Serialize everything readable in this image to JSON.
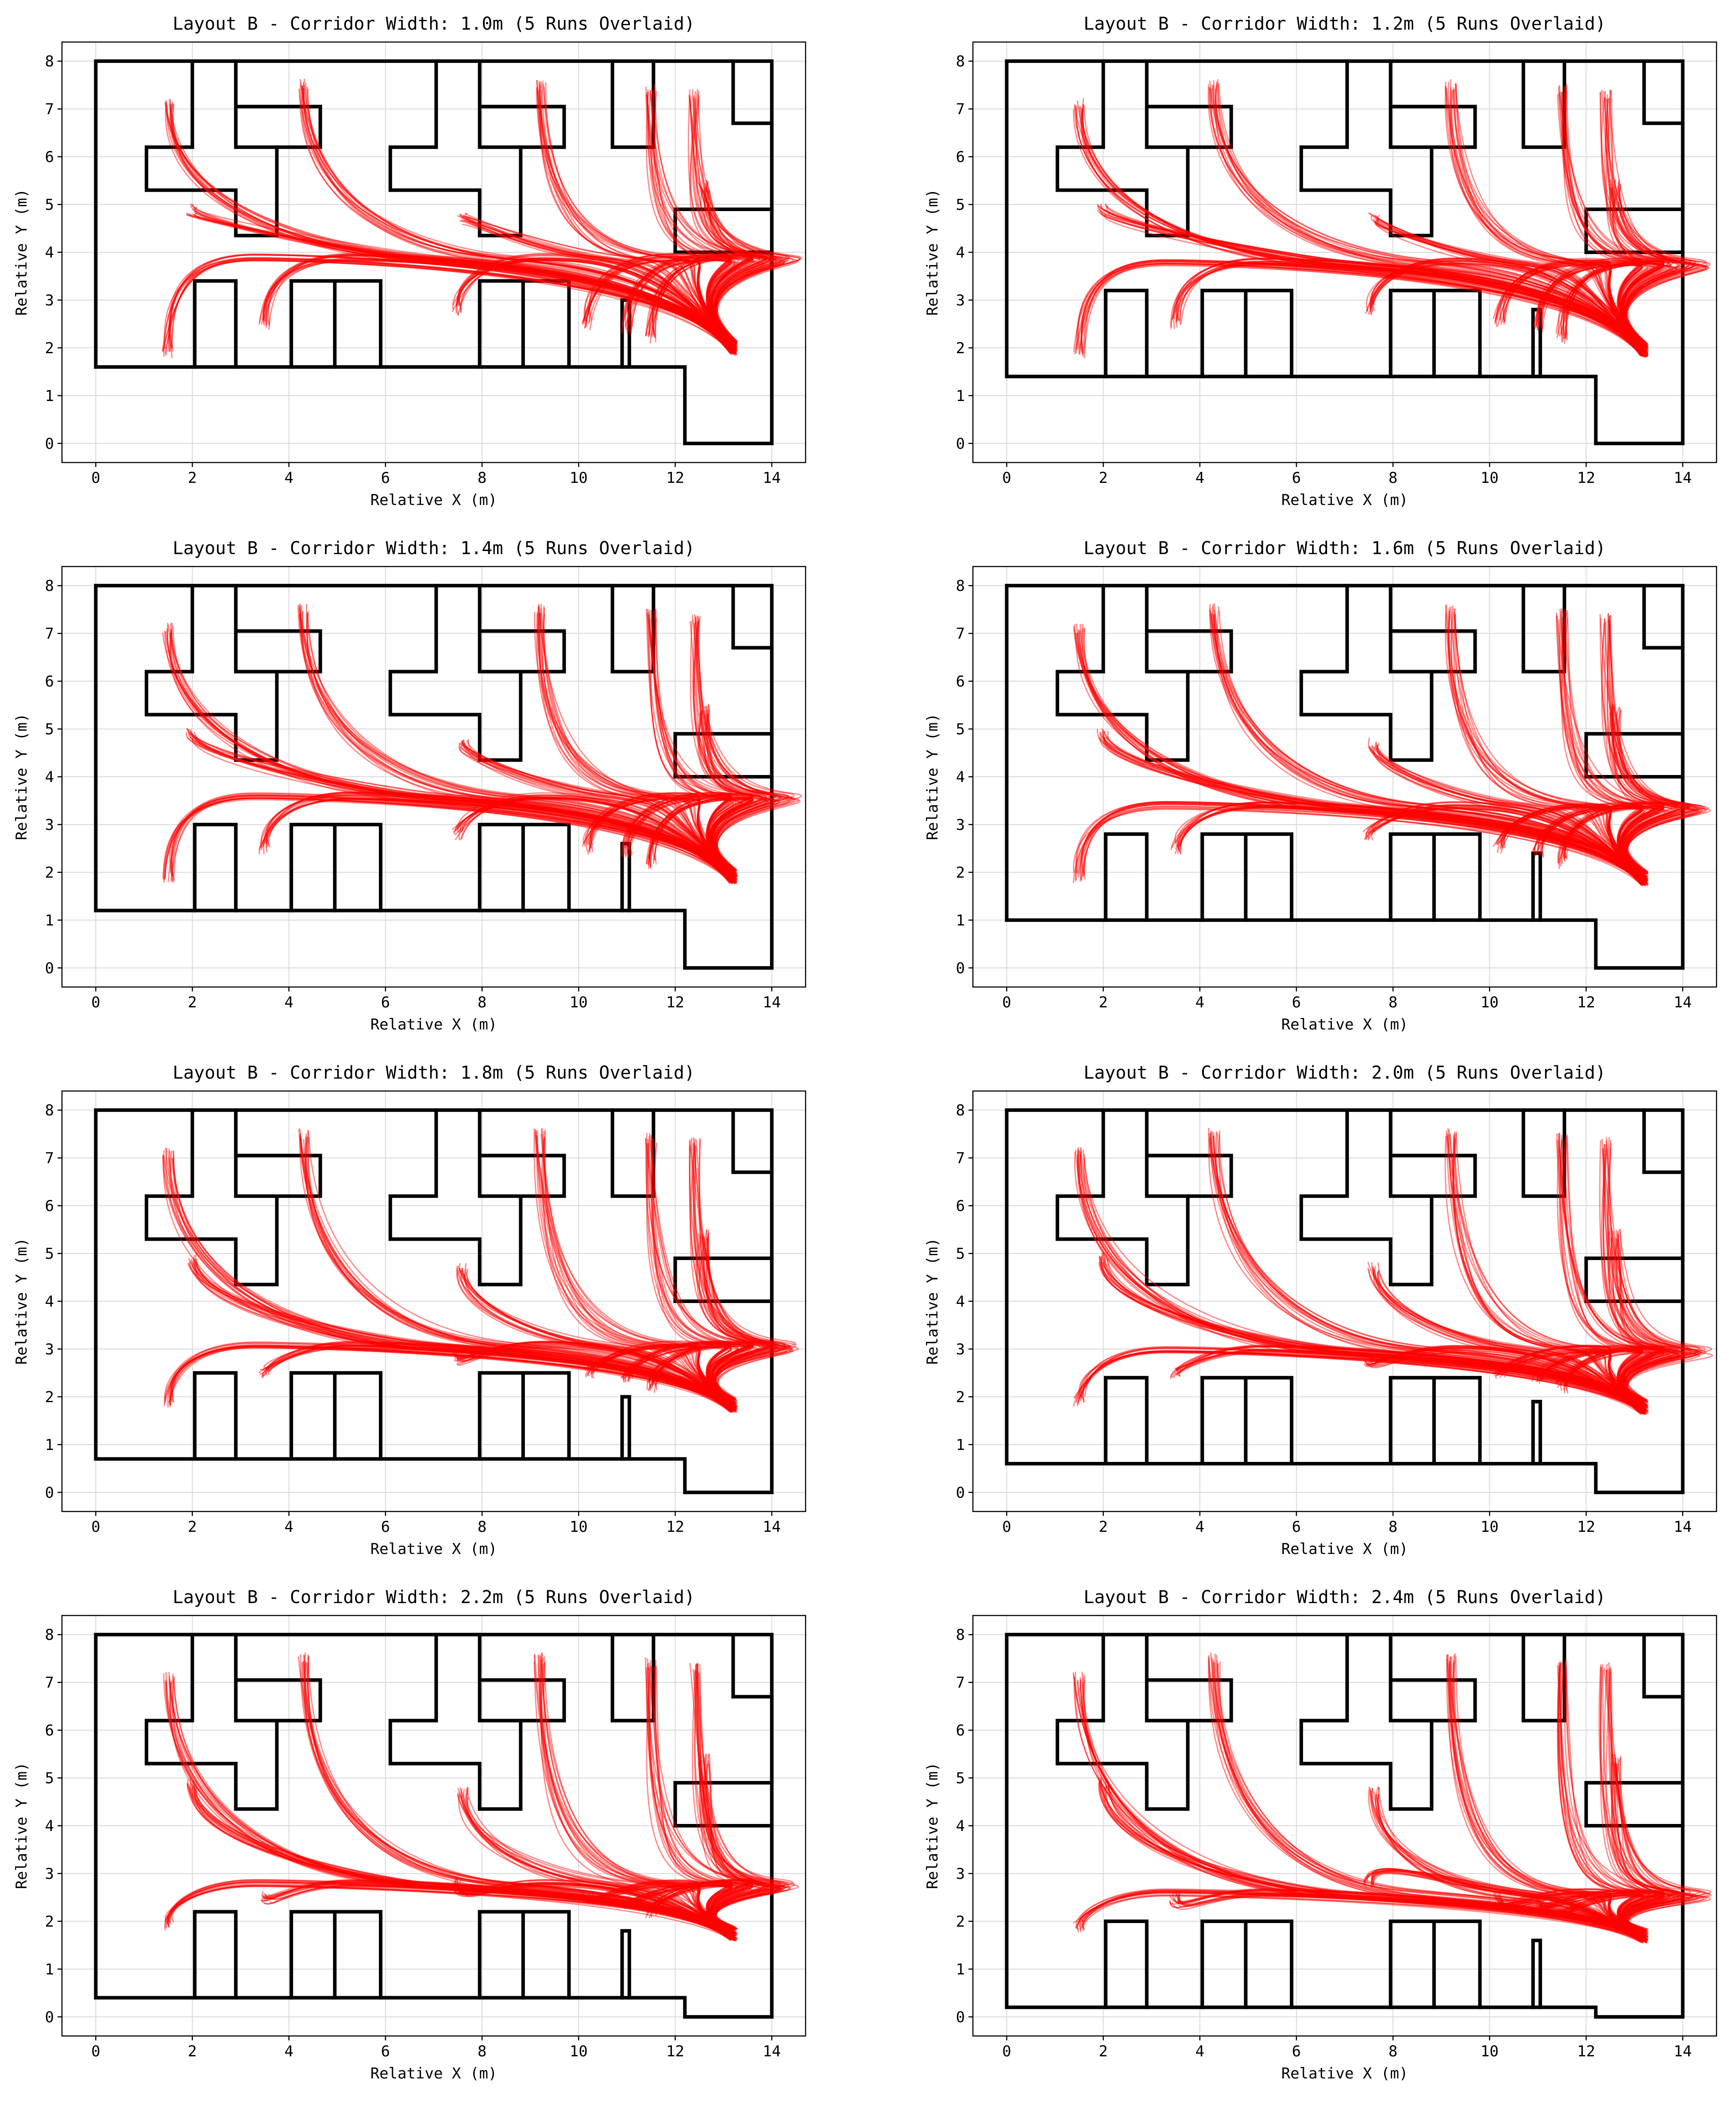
{
  "figure": {
    "grid": true,
    "line_color": "#ff0000",
    "wall_color": "#000000"
  },
  "chart_data": [
    {
      "type": "line",
      "title": "Layout B - Corridor Width: 1.0m (5 Runs Overlaid)",
      "xlabel": "Relative X (m)",
      "ylabel": "Relative Y (m)",
      "xlim": [
        -0.7,
        14.7
      ],
      "ylim": [
        -0.4,
        8.4
      ],
      "xticks": [
        "0",
        "2",
        "4",
        "6",
        "8",
        "10",
        "12",
        "14"
      ],
      "yticks": [
        "0",
        "1",
        "2",
        "3",
        "4",
        "5",
        "6",
        "7",
        "8"
      ],
      "corridor_width": 1.0,
      "corridor_y": 3.9,
      "lower_wall_y": 1.6,
      "lower_box_top": 3.4,
      "pillar_top": 3.0,
      "runs_overlaid": 5
    },
    {
      "type": "line",
      "title": "Layout B - Corridor Width: 1.2m (5 Runs Overlaid)",
      "xlabel": "Relative X (m)",
      "ylabel": "Relative Y (m)",
      "xlim": [
        -0.7,
        14.7
      ],
      "ylim": [
        -0.4,
        8.4
      ],
      "xticks": [
        "0",
        "2",
        "4",
        "6",
        "8",
        "10",
        "12",
        "14"
      ],
      "yticks": [
        "0",
        "1",
        "2",
        "3",
        "4",
        "5",
        "6",
        "7",
        "8"
      ],
      "corridor_width": 1.2,
      "corridor_y": 3.8,
      "lower_wall_y": 1.4,
      "lower_box_top": 3.2,
      "pillar_top": 2.8,
      "runs_overlaid": 5
    },
    {
      "type": "line",
      "title": "Layout B - Corridor Width: 1.4m (5 Runs Overlaid)",
      "xlabel": "Relative X (m)",
      "ylabel": "Relative Y (m)",
      "xlim": [
        -0.7,
        14.7
      ],
      "ylim": [
        -0.4,
        8.4
      ],
      "xticks": [
        "0",
        "2",
        "4",
        "6",
        "8",
        "10",
        "12",
        "14"
      ],
      "yticks": [
        "0",
        "1",
        "2",
        "3",
        "4",
        "5",
        "6",
        "7",
        "8"
      ],
      "corridor_width": 1.4,
      "corridor_y": 3.6,
      "lower_wall_y": 1.2,
      "lower_box_top": 3.0,
      "pillar_top": 2.6,
      "runs_overlaid": 5
    },
    {
      "type": "line",
      "title": "Layout B - Corridor Width: 1.6m (5 Runs Overlaid)",
      "xlabel": "Relative X (m)",
      "ylabel": "Relative Y (m)",
      "xlim": [
        -0.7,
        14.7
      ],
      "ylim": [
        -0.4,
        8.4
      ],
      "xticks": [
        "0",
        "2",
        "4",
        "6",
        "8",
        "10",
        "12",
        "14"
      ],
      "yticks": [
        "0",
        "1",
        "2",
        "3",
        "4",
        "5",
        "6",
        "7",
        "8"
      ],
      "corridor_width": 1.6,
      "corridor_y": 3.4,
      "lower_wall_y": 1.0,
      "lower_box_top": 2.8,
      "pillar_top": 2.4,
      "runs_overlaid": 5
    },
    {
      "type": "line",
      "title": "Layout B - Corridor Width: 1.8m (5 Runs Overlaid)",
      "xlabel": "Relative X (m)",
      "ylabel": "Relative Y (m)",
      "xlim": [
        -0.7,
        14.7
      ],
      "ylim": [
        -0.4,
        8.4
      ],
      "xticks": [
        "0",
        "2",
        "4",
        "6",
        "8",
        "10",
        "12",
        "14"
      ],
      "yticks": [
        "0",
        "1",
        "2",
        "3",
        "4",
        "5",
        "6",
        "7",
        "8"
      ],
      "corridor_width": 1.8,
      "corridor_y": 3.1,
      "lower_wall_y": 0.7,
      "lower_box_top": 2.5,
      "pillar_top": 2.0,
      "runs_overlaid": 5
    },
    {
      "type": "line",
      "title": "Layout B - Corridor Width: 2.0m (5 Runs Overlaid)",
      "xlabel": "Relative X (m)",
      "ylabel": "Relative Y (m)",
      "xlim": [
        -0.7,
        14.7
      ],
      "ylim": [
        -0.4,
        8.4
      ],
      "xticks": [
        "0",
        "2",
        "4",
        "6",
        "8",
        "10",
        "12",
        "14"
      ],
      "yticks": [
        "0",
        "1",
        "2",
        "3",
        "4",
        "5",
        "6",
        "7",
        "8"
      ],
      "corridor_width": 2.0,
      "corridor_y": 3.0,
      "lower_wall_y": 0.6,
      "lower_box_top": 2.4,
      "pillar_top": 1.9,
      "runs_overlaid": 5
    },
    {
      "type": "line",
      "title": "Layout B - Corridor Width: 2.2m (5 Runs Overlaid)",
      "xlabel": "Relative X (m)",
      "ylabel": "Relative Y (m)",
      "xlim": [
        -0.7,
        14.7
      ],
      "ylim": [
        -0.4,
        8.4
      ],
      "xticks": [
        "0",
        "2",
        "4",
        "6",
        "8",
        "10",
        "12",
        "14"
      ],
      "yticks": [
        "0",
        "1",
        "2",
        "3",
        "4",
        "5",
        "6",
        "7",
        "8"
      ],
      "corridor_width": 2.2,
      "corridor_y": 2.8,
      "lower_wall_y": 0.4,
      "lower_box_top": 2.2,
      "pillar_top": 1.8,
      "runs_overlaid": 5
    },
    {
      "type": "line",
      "title": "Layout B - Corridor Width: 2.4m (5 Runs Overlaid)",
      "xlabel": "Relative X (m)",
      "ylabel": "Relative Y (m)",
      "xlim": [
        -0.7,
        14.7
      ],
      "ylim": [
        -0.4,
        8.4
      ],
      "xticks": [
        "0",
        "2",
        "4",
        "6",
        "8",
        "10",
        "12",
        "14"
      ],
      "yticks": [
        "0",
        "1",
        "2",
        "3",
        "4",
        "5",
        "6",
        "7",
        "8"
      ],
      "corridor_width": 2.4,
      "corridor_y": 2.6,
      "lower_wall_y": 0.2,
      "lower_box_top": 2.0,
      "pillar_top": 1.6,
      "runs_overlaid": 5
    }
  ]
}
